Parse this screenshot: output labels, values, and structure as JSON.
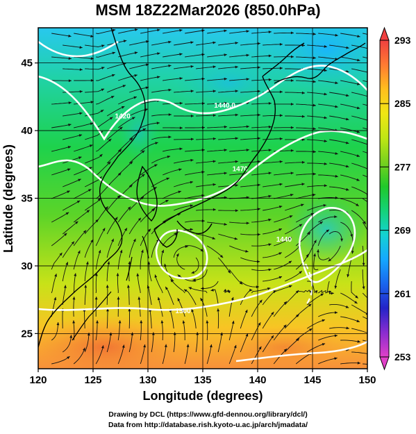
{
  "title": "MSM 18Z22Mar2026 (850.0hPa)",
  "map": {
    "xlabel": "Longitude (degrees)",
    "ylabel": "Latitude  (degrees)",
    "xlim": [
      120,
      150
    ],
    "ylim": [
      22.4,
      47.6
    ],
    "xticks": [
      "120",
      "125",
      "130",
      "135",
      "140",
      "145",
      "150"
    ],
    "yticks": [
      "25",
      "30",
      "35",
      "40",
      "45"
    ],
    "contour_labels": [
      {
        "text": "1440.0",
        "lon": 137.0,
        "lat": 41.7
      },
      {
        "text": "1470",
        "lon": 138.4,
        "lat": 37.0
      },
      {
        "text": "1440",
        "lon": 142.4,
        "lat": 31.8
      },
      {
        "text": "1500",
        "lon": 133.2,
        "lat": 26.5
      },
      {
        "text": "1420",
        "lon": 127.7,
        "lat": 40.9
      }
    ]
  },
  "colorbar": {
    "ticks": [
      "253",
      "261",
      "269",
      "277",
      "285",
      "293"
    ],
    "min": 253,
    "max": 293,
    "colors": [
      "#e040c8",
      "#8a2cd0",
      "#2424c8",
      "#1a66ee",
      "#14a8ff",
      "#14d2d2",
      "#14d278",
      "#20c82a",
      "#78d21e",
      "#c0e614",
      "#f0e614",
      "#ffbe1e",
      "#ff7a32",
      "#f04040"
    ]
  },
  "credits": {
    "line1": "Drawing by DCL (https://www.gfd-dennou.org/library/dcl/)",
    "line2": "Data from http://database.rish.kyoto-u.ac.jp/arch/jmadata/"
  }
}
